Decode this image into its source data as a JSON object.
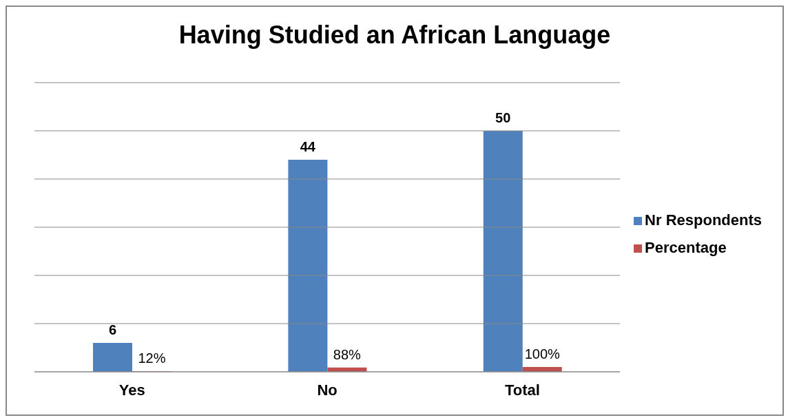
{
  "chart_data": {
    "type": "bar",
    "title": "Having Studied an African Language",
    "categories": [
      "Yes",
      "No",
      "Total"
    ],
    "series": [
      {
        "name": "Nr Respondents",
        "color": "#4f81bd",
        "values": [
          6,
          44,
          50
        ],
        "value_labels": [
          "6",
          "44",
          "50"
        ]
      },
      {
        "name": "Percentage",
        "color": "#c0504d",
        "values": [
          0.12,
          0.88,
          1
        ],
        "value_labels": [
          "12%",
          "88%",
          "100%"
        ]
      }
    ],
    "ylim": [
      0,
      60
    ],
    "yticks": [
      {
        "value": 0,
        "label": null
      },
      {
        "value": 10,
        "label": null
      },
      {
        "value": 20,
        "label": null
      },
      {
        "value": 30,
        "label": null
      },
      {
        "value": 40,
        "label": null
      },
      {
        "value": 50,
        "label": null
      },
      {
        "value": 60,
        "label": null
      }
    ],
    "tick_labels": "x",
    "grid": "y",
    "legend": "right"
  }
}
